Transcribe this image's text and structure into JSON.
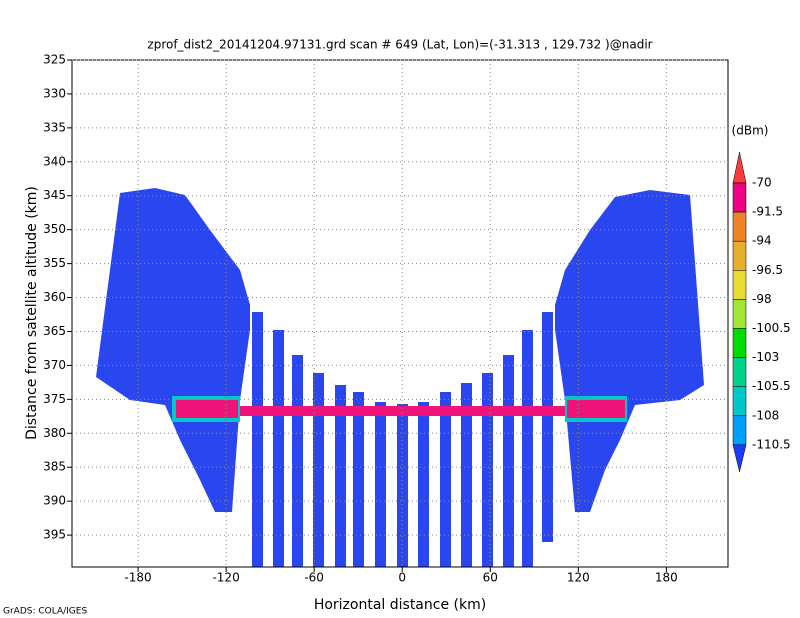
{
  "chart_data": {
    "type": "field",
    "title": "zprof_dist2_20141204.97131.grd  scan # 649  (Lat, Lon)=(-31.313 , 129.732 )@nadir",
    "x_label": "Horizontal distance (km)",
    "y_label": "Distance from satellite altitude (km)",
    "credit": "GrADS: COLA/IGES",
    "xlim": [
      -225,
      222
    ],
    "xticks": [
      -180,
      -120,
      -60,
      0,
      60,
      120,
      180
    ],
    "ylim": [
      325,
      399.7
    ],
    "yticks": [
      325,
      330,
      335,
      340,
      345,
      350,
      355,
      360,
      365,
      370,
      375,
      380,
      385,
      390,
      395
    ],
    "grid": true,
    "colorbar": {
      "unit": "(dBm)",
      "levels": [
        -70,
        -91.5,
        -94,
        -96.5,
        -98,
        -100.5,
        -103,
        -105.5,
        -108,
        -110.5
      ],
      "colors": [
        "#fa3c3c",
        "#f00082",
        "#f08228",
        "#e6af2d",
        "#e6dc32",
        "#a0e632",
        "#00dc00",
        "#00d28c",
        "#00c8c8",
        "#00a0ff",
        "#1e3cff"
      ]
    }
  }
}
